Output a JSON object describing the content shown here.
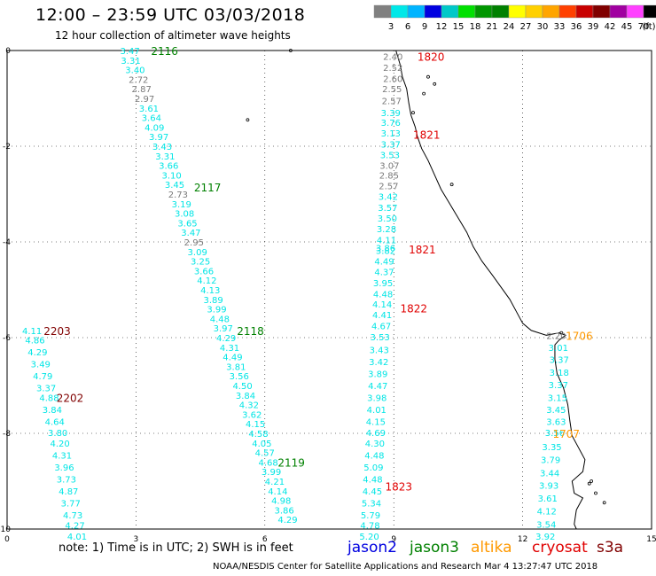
{
  "header": {
    "title": "12:00 – 23:59 UTC 03/03/2018",
    "subtitle": "12 hour collection of altimeter wave heights"
  },
  "scale": {
    "unit_label": "(ft)",
    "bins": [
      {
        "label": "",
        "color": "#808080"
      },
      {
        "label": "3",
        "color": "#00e8e8"
      },
      {
        "label": "6",
        "color": "#00b4ff"
      },
      {
        "label": "9",
        "color": "#0000e0"
      },
      {
        "label": "12",
        "color": "#00c8c8"
      },
      {
        "label": "15",
        "color": "#00e000"
      },
      {
        "label": "18",
        "color": "#009600"
      },
      {
        "label": "21",
        "color": "#008000"
      },
      {
        "label": "24",
        "color": "#ffff00"
      },
      {
        "label": "27",
        "color": "#ffd000"
      },
      {
        "label": "30",
        "color": "#ffa500"
      },
      {
        "label": "33",
        "color": "#ff4000"
      },
      {
        "label": "36",
        "color": "#c80000"
      },
      {
        "label": "39",
        "color": "#800000"
      },
      {
        "label": "42",
        "color": "#a000a0"
      },
      {
        "label": "45",
        "color": "#ff40ff"
      },
      {
        "label": "70",
        "color": "#000000"
      }
    ]
  },
  "axes": {
    "x_ticks": [
      "0",
      "3",
      "6",
      "9",
      "12",
      "15"
    ],
    "y_ticks": [
      "0",
      "-2",
      "-4",
      "-6",
      "-8",
      "-10"
    ]
  },
  "colors": {
    "jason2": "#0000e0",
    "jason3": "#008000",
    "altika": "#ff9900",
    "cryosat": "#e00000",
    "s3a": "#800000",
    "cyan": "#00e5e5",
    "gray": "#7a7a7a"
  },
  "passes": [
    {
      "label": "2116",
      "sat": "jason3",
      "x": 3.35,
      "y": 0.0
    },
    {
      "label": "2117",
      "sat": "jason3",
      "x": 4.35,
      "y": -2.85
    },
    {
      "label": "2118",
      "sat": "jason3",
      "x": 5.35,
      "y": -5.85
    },
    {
      "label": "2119",
      "sat": "jason3",
      "x": 6.3,
      "y": -8.6
    },
    {
      "label": "1820",
      "sat": "cryosat",
      "x": 9.55,
      "y": -0.12
    },
    {
      "label": "1821",
      "sat": "cryosat",
      "x": 9.45,
      "y": -1.75
    },
    {
      "label": "1821",
      "sat": "cryosat",
      "x": 9.35,
      "y": -4.15
    },
    {
      "label": "1822",
      "sat": "cryosat",
      "x": 9.15,
      "y": -5.38
    },
    {
      "label": "1823",
      "sat": "cryosat",
      "x": 8.8,
      "y": -9.1
    },
    {
      "label": "1706",
      "sat": "altika",
      "x": 13.0,
      "y": -5.95
    },
    {
      "label": "1707",
      "sat": "altika",
      "x": 12.7,
      "y": -8.0
    },
    {
      "label": "2203",
      "sat": "s3a",
      "x": 0.85,
      "y": -5.85
    },
    {
      "label": "2202",
      "sat": "s3a",
      "x": 1.15,
      "y": -7.25
    }
  ],
  "tracks": [
    {
      "name": "jason3-a",
      "dx": 0.35,
      "values": [
        {
          "v": "3.47",
          "x": 2.28,
          "y": 0.0
        },
        {
          "v": "3.31",
          "x": 2.3,
          "y": -0.2
        },
        {
          "v": "3.40",
          "x": 2.4,
          "y": -0.4
        },
        {
          "v": "2.72",
          "x": 2.48,
          "y": -0.6,
          "c": "gray"
        },
        {
          "v": "2.87",
          "x": 2.55,
          "y": -0.8,
          "c": "gray"
        },
        {
          "v": "2.97",
          "x": 2.62,
          "y": -1.0,
          "c": "gray"
        },
        {
          "v": "3.61",
          "x": 2.72,
          "y": -1.2
        },
        {
          "v": "3.64",
          "x": 2.78,
          "y": -1.4
        },
        {
          "v": "4.09",
          "x": 2.85,
          "y": -1.6
        },
        {
          "v": "3.97",
          "x": 2.95,
          "y": -1.8
        },
        {
          "v": "3.43",
          "x": 3.03,
          "y": -2.0
        },
        {
          "v": "3.31",
          "x": 3.1,
          "y": -2.2
        },
        {
          "v": "3.66",
          "x": 3.18,
          "y": -2.4
        },
        {
          "v": "3.10",
          "x": 3.25,
          "y": -2.6
        },
        {
          "v": "3.45",
          "x": 3.32,
          "y": -2.8
        },
        {
          "v": "2.73",
          "x": 3.4,
          "y": -3.0,
          "c": "gray"
        },
        {
          "v": "3.19",
          "x": 3.48,
          "y": -3.2
        },
        {
          "v": "3.08",
          "x": 3.55,
          "y": -3.4
        },
        {
          "v": "3.65",
          "x": 3.62,
          "y": -3.6
        },
        {
          "v": "3.47",
          "x": 3.7,
          "y": -3.8
        },
        {
          "v": "2.95",
          "x": 3.77,
          "y": -4.0,
          "c": "gray"
        },
        {
          "v": "3.09",
          "x": 3.85,
          "y": -4.2
        },
        {
          "v": "3.25",
          "x": 3.92,
          "y": -4.4
        },
        {
          "v": "3.66",
          "x": 4.0,
          "y": -4.6
        },
        {
          "v": "4.12",
          "x": 4.07,
          "y": -4.8
        },
        {
          "v": "4.13",
          "x": 4.15,
          "y": -5.0
        },
        {
          "v": "3.89",
          "x": 4.22,
          "y": -5.2
        },
        {
          "v": "3.99",
          "x": 4.3,
          "y": -5.4
        },
        {
          "v": "4.48",
          "x": 4.37,
          "y": -5.6
        },
        {
          "v": "3.97",
          "x": 4.45,
          "y": -5.8
        },
        {
          "v": "4.29",
          "x": 4.52,
          "y": -6.0
        },
        {
          "v": "4.31",
          "x": 4.6,
          "y": -6.2
        },
        {
          "v": "4.49",
          "x": 4.67,
          "y": -6.4
        },
        {
          "v": "3.81",
          "x": 4.75,
          "y": -6.6
        },
        {
          "v": "3.56",
          "x": 4.82,
          "y": -6.8
        },
        {
          "v": "4.50",
          "x": 4.9,
          "y": -7.0
        },
        {
          "v": "3.84",
          "x": 4.97,
          "y": -7.2
        },
        {
          "v": "4.32",
          "x": 5.05,
          "y": -7.4
        },
        {
          "v": "3.62",
          "x": 5.12,
          "y": -7.6
        },
        {
          "v": "4.15",
          "x": 5.2,
          "y": -7.8
        },
        {
          "v": "4.58",
          "x": 5.27,
          "y": -8.0
        },
        {
          "v": "4.05",
          "x": 5.35,
          "y": -8.2
        },
        {
          "v": "4.57",
          "x": 5.42,
          "y": -8.4
        },
        {
          "v": "4.68",
          "x": 5.5,
          "y": -8.6
        },
        {
          "v": "3.99",
          "x": 5.57,
          "y": -8.8
        },
        {
          "v": "4.21",
          "x": 5.65,
          "y": -9.0
        },
        {
          "v": "4.14",
          "x": 5.72,
          "y": -9.2
        },
        {
          "v": "4.98",
          "x": 5.8,
          "y": -9.4
        },
        {
          "v": "3.86",
          "x": 5.87,
          "y": -9.6
        },
        {
          "v": "4.29",
          "x": 5.95,
          "y": -9.8
        }
      ]
    },
    {
      "name": "cryosat-a",
      "dx": 0,
      "values": [
        {
          "v": "2.40",
          "x": 8.75,
          "y": -0.12,
          "c": "gray"
        },
        {
          "v": "2.52",
          "x": 8.75,
          "y": -0.35,
          "c": "gray"
        },
        {
          "v": "2.60",
          "x": 8.75,
          "y": -0.58,
          "c": "gray"
        },
        {
          "v": "2.55",
          "x": 8.73,
          "y": -0.8,
          "c": "gray"
        },
        {
          "v": "2.57",
          "x": 8.72,
          "y": -1.05,
          "c": "gray"
        },
        {
          "v": "3.39",
          "x": 8.7,
          "y": -1.3
        },
        {
          "v": "3.76",
          "x": 8.7,
          "y": -1.5
        },
        {
          "v": "3.13",
          "x": 8.7,
          "y": -1.72
        },
        {
          "v": "3.37",
          "x": 8.7,
          "y": -1.95
        },
        {
          "v": "3.53",
          "x": 8.68,
          "y": -2.18
        },
        {
          "v": "3.07",
          "x": 8.67,
          "y": -2.4,
          "c": "gray"
        },
        {
          "v": "2.85",
          "x": 8.66,
          "y": -2.6,
          "c": "gray"
        },
        {
          "v": "2.57",
          "x": 8.65,
          "y": -2.82,
          "c": "gray"
        },
        {
          "v": "3.42",
          "x": 8.64,
          "y": -3.05
        },
        {
          "v": "3.57",
          "x": 8.63,
          "y": -3.28
        },
        {
          "v": "3.50",
          "x": 8.62,
          "y": -3.5
        },
        {
          "v": "3.28",
          "x": 8.6,
          "y": -3.72
        },
        {
          "v": "4.11",
          "x": 8.6,
          "y": -3.95
        },
        {
          "v": "3.86",
          "x": 8.58,
          "y": -4.12
        },
        {
          "v": "3.82",
          "x": 8.58,
          "y": -4.18
        },
        {
          "v": "4.49",
          "x": 8.55,
          "y": -4.4
        },
        {
          "v": "4.37",
          "x": 8.55,
          "y": -4.62
        },
        {
          "v": "3.95",
          "x": 8.52,
          "y": -4.85
        },
        {
          "v": "4.48",
          "x": 8.52,
          "y": -5.08
        },
        {
          "v": "4.14",
          "x": 8.5,
          "y": -5.3
        },
        {
          "v": "4.41",
          "x": 8.5,
          "y": -5.52
        },
        {
          "v": "4.67",
          "x": 8.48,
          "y": -5.75
        },
        {
          "v": "3.53",
          "x": 8.45,
          "y": -5.98
        },
        {
          "v": "3.43",
          "x": 8.43,
          "y": -6.25
        },
        {
          "v": "3.42",
          "x": 8.42,
          "y": -6.5
        },
        {
          "v": "3.89",
          "x": 8.4,
          "y": -6.75
        },
        {
          "v": "4.47",
          "x": 8.4,
          "y": -7.0
        },
        {
          "v": "3.98",
          "x": 8.38,
          "y": -7.25
        },
        {
          "v": "4.01",
          "x": 8.37,
          "y": -7.5
        },
        {
          "v": "4.15",
          "x": 8.35,
          "y": -7.75
        },
        {
          "v": "4.69",
          "x": 8.35,
          "y": -7.98
        },
        {
          "v": "4.30",
          "x": 8.33,
          "y": -8.2
        },
        {
          "v": "4.48",
          "x": 8.32,
          "y": -8.45
        },
        {
          "v": "5.09",
          "x": 8.3,
          "y": -8.7
        },
        {
          "v": "4.48",
          "x": 8.28,
          "y": -8.95
        },
        {
          "v": "4.45",
          "x": 8.27,
          "y": -9.2
        },
        {
          "v": "5.34",
          "x": 8.25,
          "y": -9.45
        },
        {
          "v": "5.79",
          "x": 8.23,
          "y": -9.7
        },
        {
          "v": "4.78",
          "x": 8.22,
          "y": -9.92
        },
        {
          "v": "5.20",
          "x": 8.2,
          "y": -10.15
        }
      ]
    },
    {
      "name": "s3a-a",
      "dx": 0,
      "values": [
        {
          "v": "4.11",
          "x": 0.35,
          "y": -5.85
        },
        {
          "v": "4.86",
          "x": 0.42,
          "y": -6.05
        },
        {
          "v": "4.29",
          "x": 0.48,
          "y": -6.3
        },
        {
          "v": "3.49",
          "x": 0.55,
          "y": -6.55
        },
        {
          "v": "4.79",
          "x": 0.6,
          "y": -6.8
        },
        {
          "v": "3.37",
          "x": 0.68,
          "y": -7.05
        },
        {
          "v": "4.88",
          "x": 0.75,
          "y": -7.25
        },
        {
          "v": "3.84",
          "x": 0.82,
          "y": -7.5
        },
        {
          "v": "4.64",
          "x": 0.88,
          "y": -7.75
        },
        {
          "v": "3.80",
          "x": 0.95,
          "y": -7.98
        },
        {
          "v": "4.20",
          "x": 1.0,
          "y": -8.2
        },
        {
          "v": "4.31",
          "x": 1.05,
          "y": -8.45
        },
        {
          "v": "3.96",
          "x": 1.1,
          "y": -8.7
        },
        {
          "v": "3.73",
          "x": 1.15,
          "y": -8.95
        },
        {
          "v": "4.87",
          "x": 1.2,
          "y": -9.2
        },
        {
          "v": "3.77",
          "x": 1.25,
          "y": -9.45
        },
        {
          "v": "4.73",
          "x": 1.3,
          "y": -9.7
        },
        {
          "v": "4.27",
          "x": 1.35,
          "y": -9.92
        },
        {
          "v": "4.01",
          "x": 1.4,
          "y": -10.15
        }
      ]
    },
    {
      "name": "altika-a",
      "dx": 0,
      "values": [
        {
          "v": "2.20",
          "x": 12.55,
          "y": -5.95,
          "c": "gray"
        },
        {
          "v": "3.01",
          "x": 12.6,
          "y": -6.2
        },
        {
          "v": "3.37",
          "x": 12.62,
          "y": -6.45
        },
        {
          "v": "3.18",
          "x": 12.62,
          "y": -6.72
        },
        {
          "v": "3.37",
          "x": 12.6,
          "y": -6.98
        },
        {
          "v": "3.15",
          "x": 12.58,
          "y": -7.25
        },
        {
          "v": "3.45",
          "x": 12.55,
          "y": -7.5
        },
        {
          "v": "3.63",
          "x": 12.55,
          "y": -7.75
        },
        {
          "v": "3.56",
          "x": 12.52,
          "y": -7.98
        },
        {
          "v": "3.35",
          "x": 12.45,
          "y": -8.28
        },
        {
          "v": "3.79",
          "x": 12.42,
          "y": -8.55
        },
        {
          "v": "3.44",
          "x": 12.4,
          "y": -8.82
        },
        {
          "v": "3.93",
          "x": 12.38,
          "y": -9.08
        },
        {
          "v": "3.61",
          "x": 12.35,
          "y": -9.35
        },
        {
          "v": "4.12",
          "x": 12.33,
          "y": -9.62
        },
        {
          "v": "3.54",
          "x": 12.32,
          "y": -9.9
        },
        {
          "v": "3.92",
          "x": 12.3,
          "y": -10.15
        }
      ]
    }
  ],
  "footer": {
    "note": "note:  1) Time is in UTC;  2) SWH is in feet",
    "credit": "NOAA/NESDIS Center for Satellite Applications and Research     Mar  4 13:27:47 UTC 2018",
    "legend": [
      {
        "label": "jason2",
        "sat": "jason2"
      },
      {
        "label": "jason3",
        "sat": "jason3"
      },
      {
        "label": "altika",
        "sat": "altika"
      },
      {
        "label": "cryosat",
        "sat": "cryosat"
      },
      {
        "label": "s3a",
        "sat": "s3a"
      }
    ]
  }
}
